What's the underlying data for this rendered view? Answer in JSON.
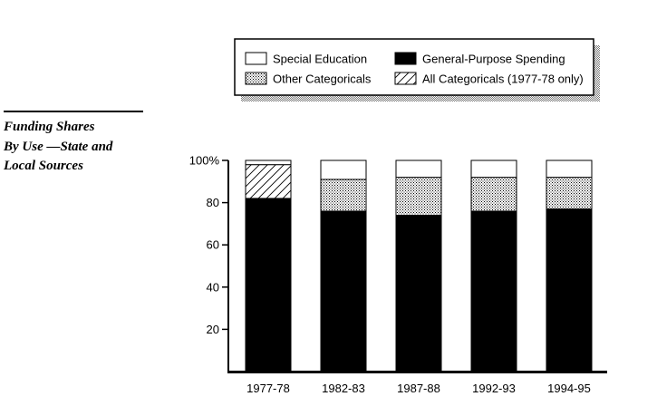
{
  "sidebar": {
    "title_lines": [
      "Funding Shares",
      "By Use —State and",
      "Local Sources"
    ]
  },
  "chart_data": {
    "type": "bar",
    "stacked": true,
    "categories": [
      "1977-78",
      "1982-83",
      "1987-88",
      "1992-93",
      "1994-95"
    ],
    "series": [
      {
        "name": "General-Purpose Spending",
        "values": [
          82,
          76,
          74,
          76,
          77
        ],
        "fill": "solid",
        "color": "#000000"
      },
      {
        "name": "All Categoricals (1977-78 only)",
        "values": [
          16,
          0,
          0,
          0,
          0
        ],
        "fill": "diagonal-hatch",
        "color": "#000000"
      },
      {
        "name": "Other Categoricals",
        "values": [
          0,
          15,
          18,
          16,
          15
        ],
        "fill": "dotted",
        "color": "#000000"
      },
      {
        "name": "Special Education",
        "values": [
          2,
          9,
          8,
          8,
          8
        ],
        "fill": "white",
        "color": "#ffffff"
      }
    ],
    "ylim": [
      0,
      100
    ],
    "yticks": [
      {
        "value": 20,
        "label": "20"
      },
      {
        "value": 40,
        "label": "40"
      },
      {
        "value": 60,
        "label": "60"
      },
      {
        "value": 80,
        "label": "80"
      },
      {
        "value": 100,
        "label": "100%"
      }
    ],
    "legend": {
      "position": "top",
      "entries": [
        {
          "label": "Special Education",
          "fill": "white"
        },
        {
          "label": "General-Purpose Spending",
          "fill": "solid"
        },
        {
          "label": "Other Categoricals",
          "fill": "dotted"
        },
        {
          "label": "All Categoricals (1977-78 only)",
          "fill": "diagonal-hatch"
        }
      ]
    },
    "grid": false
  }
}
